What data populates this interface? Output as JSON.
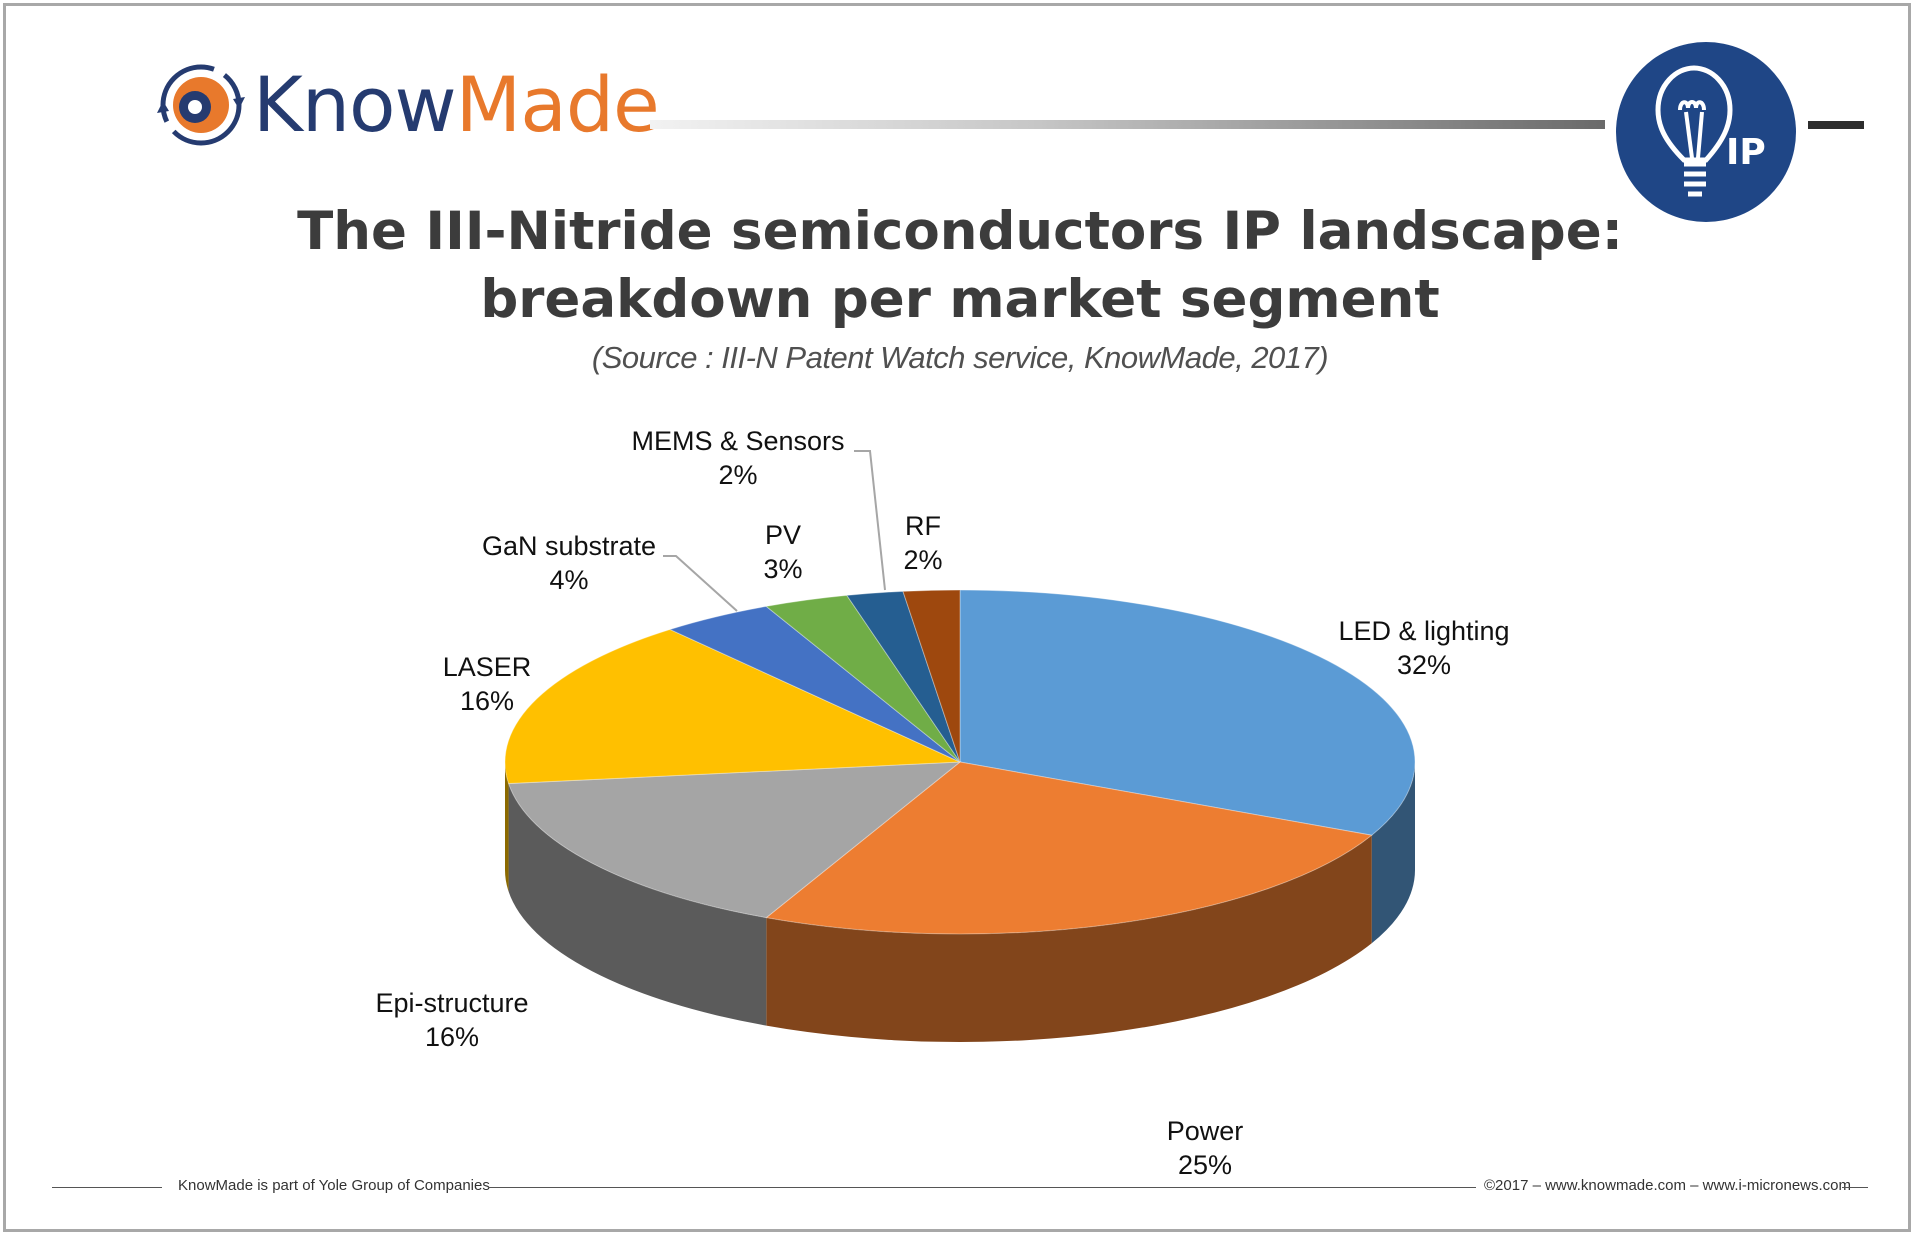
{
  "brand": {
    "name_part1": "Know",
    "name_part2": "Made",
    "badge_text": "IP"
  },
  "header": {
    "title_line1": "The III-Nitride semiconductors IP landscape:",
    "title_line2": "breakdown per market segment",
    "source": "(Source : III-N Patent Watch service, KnowMade, 2017)"
  },
  "colors": {
    "led": "#5b9bd5",
    "power": "#ed7d31",
    "epi": "#a5a5a5",
    "laser": "#ffc000",
    "gan": "#4472c4",
    "pv": "#70ad47",
    "mems": "#255e91",
    "rf": "#9e480e"
  },
  "chart_data": {
    "type": "pie",
    "title": "The III-Nitride semiconductors IP landscape: breakdown per market segment",
    "slices": [
      {
        "label": "LED & lighting",
        "value": 32,
        "value_label": "32%",
        "color": "#5b9bd5"
      },
      {
        "label": "Power",
        "value": 25,
        "value_label": "25%",
        "color": "#ed7d31"
      },
      {
        "label": "Epi-structure",
        "value": 16,
        "value_label": "16%",
        "color": "#a5a5a5"
      },
      {
        "label": "LASER",
        "value": 16,
        "value_label": "16%",
        "color": "#ffc000"
      },
      {
        "label": "GaN substrate",
        "value": 4,
        "value_label": "4%",
        "color": "#4472c4"
      },
      {
        "label": "PV",
        "value": 3,
        "value_label": "3%",
        "color": "#70ad47"
      },
      {
        "label": "MEMS & Sensors",
        "value": 2,
        "value_label": "2%",
        "color": "#255e91"
      },
      {
        "label": "RF",
        "value": 2,
        "value_label": "2%",
        "color": "#9e480e"
      }
    ]
  },
  "footer": {
    "left": "KnowMade is part of Yole Group of Companies",
    "right": "©2017 – www.knowmade.com – www.i-micronews.com"
  }
}
